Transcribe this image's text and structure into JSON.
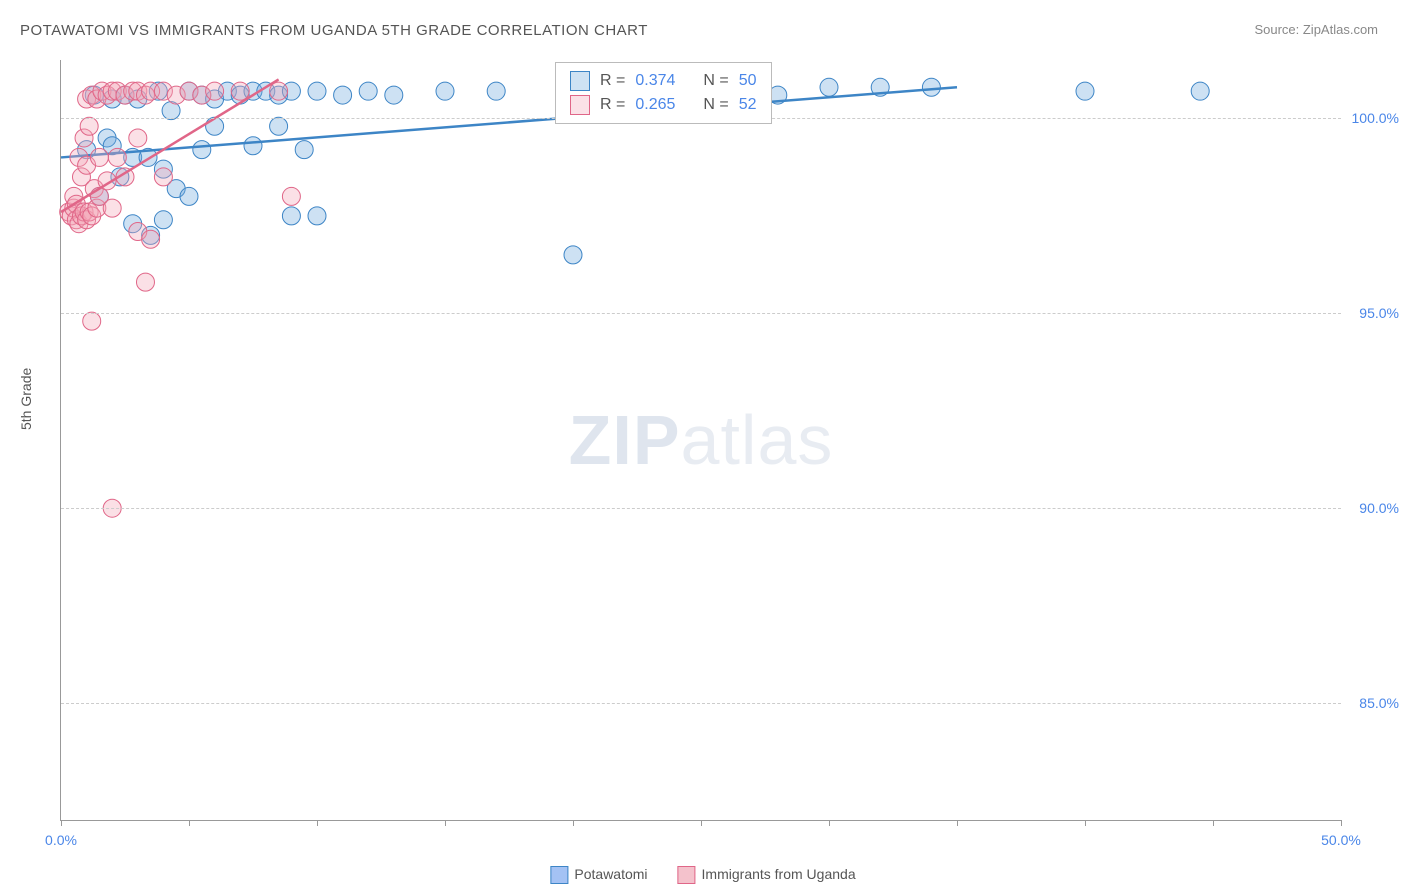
{
  "title": "POTAWATOMI VS IMMIGRANTS FROM UGANDA 5TH GRADE CORRELATION CHART",
  "source": "Source: ZipAtlas.com",
  "ylabel": "5th Grade",
  "watermark_bold": "ZIP",
  "watermark_light": "atlas",
  "chart": {
    "type": "scatter",
    "xlim": [
      0,
      50
    ],
    "ylim": [
      82,
      101.5
    ],
    "xtick_positions": [
      0,
      5,
      10,
      15,
      20,
      25,
      30,
      35,
      40,
      45,
      50
    ],
    "xtick_labels": {
      "0": "0.0%",
      "50": "50.0%"
    },
    "ytick_positions": [
      85,
      90,
      95,
      100
    ],
    "ytick_labels": [
      "85.0%",
      "90.0%",
      "95.0%",
      "100.0%"
    ],
    "background_color": "#ffffff",
    "grid_color": "#cccccc",
    "axis_color": "#999999",
    "tick_label_color": "#4a86e8",
    "marker_radius": 9,
    "series": [
      {
        "name": "Potawatomi",
        "color_fill": "#6fa8dc",
        "color_stroke": "#3d85c6",
        "r_value": "0.374",
        "n_value": "50",
        "trend": {
          "x1": 0,
          "y1": 99.0,
          "x2": 35,
          "y2": 100.8
        },
        "points": [
          [
            1.0,
            99.2
          ],
          [
            1.3,
            100.6
          ],
          [
            1.5,
            98.0
          ],
          [
            1.8,
            99.5
          ],
          [
            2.0,
            100.5
          ],
          [
            2.0,
            99.3
          ],
          [
            2.3,
            98.5
          ],
          [
            2.5,
            100.6
          ],
          [
            2.8,
            99.0
          ],
          [
            2.8,
            97.3
          ],
          [
            3.0,
            100.5
          ],
          [
            3.4,
            99.0
          ],
          [
            3.5,
            97.0
          ],
          [
            3.8,
            100.7
          ],
          [
            4.0,
            98.7
          ],
          [
            4.0,
            97.4
          ],
          [
            4.3,
            100.2
          ],
          [
            4.5,
            98.2
          ],
          [
            5.0,
            100.7
          ],
          [
            5.0,
            98.0
          ],
          [
            5.5,
            100.6
          ],
          [
            5.5,
            99.2
          ],
          [
            6.0,
            100.5
          ],
          [
            6.0,
            99.8
          ],
          [
            6.5,
            100.7
          ],
          [
            7.0,
            100.6
          ],
          [
            7.5,
            100.7
          ],
          [
            7.5,
            99.3
          ],
          [
            8.0,
            100.7
          ],
          [
            8.5,
            100.6
          ],
          [
            8.5,
            99.8
          ],
          [
            9.0,
            100.7
          ],
          [
            9.0,
            97.5
          ],
          [
            9.5,
            99.2
          ],
          [
            10.0,
            100.7
          ],
          [
            10.0,
            97.5
          ],
          [
            11.0,
            100.6
          ],
          [
            12.0,
            100.7
          ],
          [
            13.0,
            100.6
          ],
          [
            15.0,
            100.7
          ],
          [
            17.0,
            100.7
          ],
          [
            20.0,
            96.5
          ],
          [
            21.0,
            100.6
          ],
          [
            25.0,
            100.7
          ],
          [
            28.0,
            100.6
          ],
          [
            30.0,
            100.8
          ],
          [
            32.0,
            100.8
          ],
          [
            34.0,
            100.8
          ],
          [
            40.0,
            100.7
          ],
          [
            44.5,
            100.7
          ]
        ]
      },
      {
        "name": "Immigants from Uganda",
        "display_name": "Immigrants from Uganda",
        "color_fill": "#f4a6b8",
        "color_stroke": "#e06688",
        "r_value": "0.265",
        "n_value": "52",
        "trend": {
          "x1": 0,
          "y1": 97.6,
          "x2": 8.5,
          "y2": 101.0
        },
        "points": [
          [
            0.3,
            97.6
          ],
          [
            0.4,
            97.5
          ],
          [
            0.5,
            97.7
          ],
          [
            0.5,
            98.0
          ],
          [
            0.6,
            97.4
          ],
          [
            0.6,
            97.8
          ],
          [
            0.7,
            97.3
          ],
          [
            0.7,
            99.0
          ],
          [
            0.8,
            97.5
          ],
          [
            0.8,
            98.5
          ],
          [
            0.9,
            97.6
          ],
          [
            0.9,
            99.5
          ],
          [
            1.0,
            97.4
          ],
          [
            1.0,
            98.8
          ],
          [
            1.0,
            100.5
          ],
          [
            1.1,
            97.6
          ],
          [
            1.1,
            99.8
          ],
          [
            1.2,
            97.5
          ],
          [
            1.2,
            100.6
          ],
          [
            1.3,
            98.2
          ],
          [
            1.4,
            97.7
          ],
          [
            1.4,
            100.5
          ],
          [
            1.5,
            98.0
          ],
          [
            1.5,
            99.0
          ],
          [
            1.6,
            100.7
          ],
          [
            1.8,
            98.4
          ],
          [
            1.8,
            100.6
          ],
          [
            2.0,
            97.7
          ],
          [
            2.0,
            100.7
          ],
          [
            2.0,
            90.0
          ],
          [
            2.2,
            99.0
          ],
          [
            2.2,
            100.7
          ],
          [
            2.5,
            98.5
          ],
          [
            2.5,
            100.6
          ],
          [
            2.8,
            100.7
          ],
          [
            3.0,
            97.1
          ],
          [
            3.0,
            99.5
          ],
          [
            3.0,
            100.7
          ],
          [
            3.3,
            100.6
          ],
          [
            3.3,
            95.8
          ],
          [
            3.5,
            100.7
          ],
          [
            3.5,
            96.9
          ],
          [
            4.0,
            98.5
          ],
          [
            4.0,
            100.7
          ],
          [
            4.5,
            100.6
          ],
          [
            5.0,
            100.7
          ],
          [
            5.5,
            100.6
          ],
          [
            6.0,
            100.7
          ],
          [
            7.0,
            100.7
          ],
          [
            8.5,
            100.7
          ],
          [
            9.0,
            98.0
          ],
          [
            1.2,
            94.8
          ]
        ]
      }
    ]
  },
  "legend": {
    "items": [
      {
        "label": "Potawatomi",
        "fill": "#a4c2f4",
        "stroke": "#3d85c6"
      },
      {
        "label": "Immigrants from Uganda",
        "fill": "#f4c2cc",
        "stroke": "#e06688"
      }
    ]
  },
  "stats_labels": {
    "r": "R =",
    "n": "N ="
  }
}
